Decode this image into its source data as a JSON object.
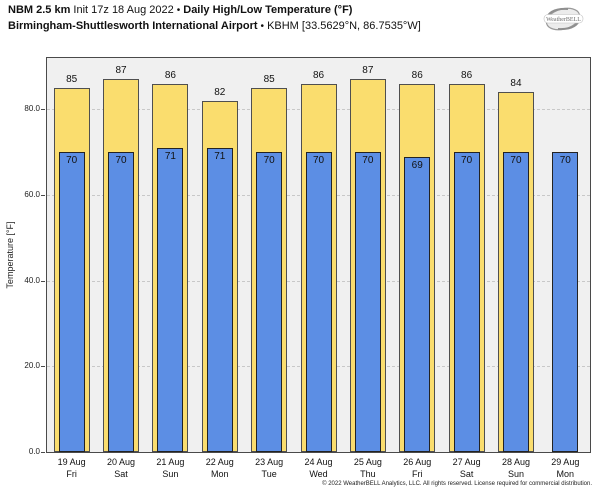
{
  "header": {
    "product": "NBM 2.5 km",
    "init": "Init 17z 18 Aug 2022",
    "separator": "•",
    "variable": "Daily High/Low Temperature (°F)",
    "station": "Birmingham-Shuttlesworth International Airport",
    "station_meta": "KBHM [33.5629°N, 86.7535°W]"
  },
  "logo": {
    "label": "WeatherBELL"
  },
  "chart_data": {
    "type": "bar",
    "title": "Daily High/Low Temperature (°F)",
    "xlabel": "",
    "ylabel": "Temperature [°F]",
    "ylim": [
      0,
      92
    ],
    "yticks": [
      0,
      20,
      40,
      60,
      80
    ],
    "grid": "horizontal-dashed",
    "grid_color": "#c8c8c8",
    "plot_bg": "#f0f0f0",
    "legend": "none",
    "categories": [
      "19 Aug Fri",
      "20 Aug Sat",
      "21 Aug Sun",
      "22 Aug Mon",
      "23 Aug Tue",
      "24 Aug Wed",
      "25 Aug Thu",
      "26 Aug Fri",
      "27 Aug Sat",
      "28 Aug Sun",
      "29 Aug Mon"
    ],
    "x_labels": [
      {
        "date": "19 Aug",
        "dow": "Fri"
      },
      {
        "date": "20 Aug",
        "dow": "Sat"
      },
      {
        "date": "21 Aug",
        "dow": "Sun"
      },
      {
        "date": "22 Aug",
        "dow": "Mon"
      },
      {
        "date": "23 Aug",
        "dow": "Tue"
      },
      {
        "date": "24 Aug",
        "dow": "Wed"
      },
      {
        "date": "25 Aug",
        "dow": "Thu"
      },
      {
        "date": "26 Aug",
        "dow": "Fri"
      },
      {
        "date": "27 Aug",
        "dow": "Sat"
      },
      {
        "date": "28 Aug",
        "dow": "Sun"
      },
      {
        "date": "29 Aug",
        "dow": "Mon"
      }
    ],
    "series": [
      {
        "name": "Daily High",
        "color": "#fadd6e",
        "border": "#4f4f4f",
        "values": [
          85,
          87,
          86,
          82,
          85,
          86,
          87,
          86,
          86,
          84,
          null
        ]
      },
      {
        "name": "Daily Low",
        "color": "#5c8ee4",
        "border": "#232323",
        "values": [
          70,
          70,
          71,
          71,
          70,
          70,
          70,
          69,
          70,
          70,
          70
        ]
      }
    ]
  },
  "footer": {
    "copyright": "© 2022 WeatherBELL Analytics, LLC. All rights reserved. License required for commercial distribution."
  }
}
